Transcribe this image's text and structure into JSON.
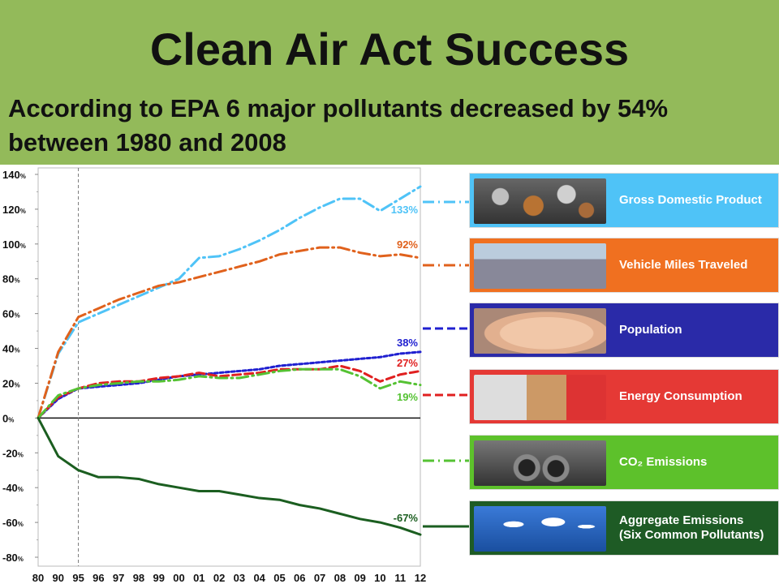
{
  "header": {
    "title": "Clean Air Act Success",
    "subtitle": "According to EPA 6 major pollutants decreased by 54% between 1980 and 2008"
  },
  "colors": {
    "header_bg": "#93ba5a",
    "gdp": "#4fc3f7",
    "vmt": "#e0611c",
    "population": "#2020d0",
    "energy": "#e02020",
    "co2": "#55c233",
    "aggregate": "#1b5e20"
  },
  "legend": [
    {
      "label": "Gross Domestic Product",
      "color": "#ffffff",
      "bg": "#4fc3f7",
      "icon": "coins-image"
    },
    {
      "label": "Vehicle Miles Traveled",
      "color": "#ffffff",
      "bg": "#f07020",
      "icon": "traffic-image"
    },
    {
      "label": "Population",
      "color": "#ffffff",
      "bg": "#2a2aa8",
      "icon": "baby-image"
    },
    {
      "label": "Energy Consumption",
      "color": "#ffffff",
      "bg": "#e53935",
      "icon": "plug-image"
    },
    {
      "label": "CO₂ Emissions",
      "color": "#ffffff",
      "bg": "#5dc12b",
      "icon": "exhaust-image"
    },
    {
      "label": "Aggregate Emissions\n(Six Common Pollutants)",
      "color": "#ffffff",
      "bg": "#1e5b25",
      "icon": "smokestack-image"
    }
  ],
  "chart_data": {
    "type": "line",
    "x": [
      "80",
      "90",
      "95",
      "96",
      "97",
      "98",
      "99",
      "00",
      "01",
      "02",
      "03",
      "04",
      "05",
      "06",
      "07",
      "08",
      "09",
      "10",
      "11",
      "12"
    ],
    "yticks": [
      "140%",
      "120%",
      "100%",
      "80%",
      "60%",
      "40%",
      "20%",
      "0%",
      "-20%",
      "-40%",
      "-60%",
      "-80%"
    ],
    "ylim": [
      -80,
      140
    ],
    "reference_line_x": "95",
    "grid": false,
    "series": [
      {
        "key": "gdp",
        "values": [
          0,
          37,
          55,
          60,
          65,
          70,
          75,
          80,
          92,
          93,
          97,
          102,
          108,
          115,
          121,
          126,
          126,
          119,
          126,
          133
        ],
        "end_label": "133%",
        "style": "dashdot"
      },
      {
        "key": "vmt",
        "values": [
          0,
          38,
          58,
          63,
          68,
          72,
          76,
          78,
          81,
          84,
          87,
          90,
          94,
          96,
          98,
          98,
          95,
          93,
          94,
          92
        ],
        "end_label": "92%",
        "style": "dashdot"
      },
      {
        "key": "population",
        "values": [
          0,
          11,
          17,
          18,
          19,
          20,
          22,
          24,
          25,
          26,
          27,
          28,
          30,
          31,
          32,
          33,
          34,
          35,
          37,
          38
        ],
        "end_label": "38%",
        "style": "dotted"
      },
      {
        "key": "energy",
        "values": [
          0,
          12,
          17,
          20,
          21,
          21,
          23,
          24,
          26,
          24,
          25,
          26,
          28,
          28,
          28,
          30,
          27,
          21,
          25,
          27
        ],
        "end_label": "27%",
        "style": "dash"
      },
      {
        "key": "co2",
        "values": [
          0,
          13,
          17,
          19,
          20,
          21,
          21,
          22,
          24,
          23,
          23,
          25,
          27,
          28,
          28,
          28,
          24,
          17,
          21,
          19
        ],
        "end_label": "19%",
        "style": "dashdot"
      },
      {
        "key": "aggregate",
        "values": [
          0,
          -22,
          -30,
          -34,
          -34,
          -35,
          -38,
          -40,
          -42,
          -42,
          -44,
          -46,
          -47,
          -50,
          -52,
          -55,
          -58,
          -60,
          -63,
          -67
        ],
        "end_label": "-67%",
        "style": "solid"
      }
    ]
  }
}
